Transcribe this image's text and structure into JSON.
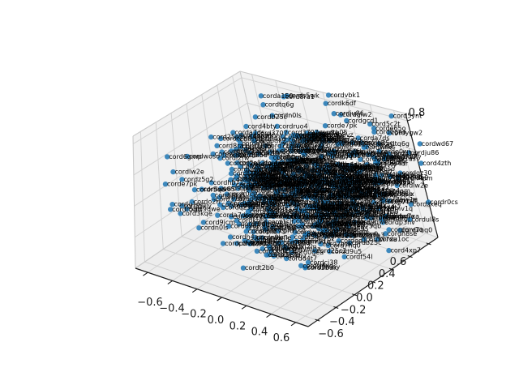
{
  "figure": {
    "background": "#ffffff"
  },
  "chart_data": {
    "type": "scatter",
    "projection_type": "3d",
    "title": "",
    "xlabel": "",
    "ylabel": "",
    "zlabel": "",
    "legend": null,
    "grid": true,
    "x_range": [
      -0.7,
      0.7
    ],
    "y_range": [
      -0.7,
      0.7
    ],
    "z_range": [
      0.0,
      0.85
    ],
    "x_ticks": [
      -0.6,
      -0.4,
      -0.2,
      0.0,
      0.2,
      0.4,
      0.6
    ],
    "x_tick_labels": [
      "-0.6",
      "-0.4",
      "-0.2",
      "0.0",
      "0.2",
      "0.4",
      "0.6"
    ],
    "y_ticks": [
      -0.6,
      -0.4,
      -0.2,
      0.0,
      0.2,
      0.4,
      0.6
    ],
    "y_tick_labels": [
      "-0.6",
      "-0.4",
      "-0.2",
      "0.0",
      "0.2",
      "0.4",
      "0.6"
    ],
    "z_ticks": [
      0.0,
      0.2,
      0.4,
      0.6,
      0.8
    ],
    "z_tick_labels_visible": [
      "0.8"
    ],
    "tick_label_font_size_px": 13,
    "colors": {
      "marker": "#1f77b4",
      "marker_opacity": 0.85,
      "point_label": "#000000",
      "pane": "#f1f1f1",
      "floor_pane": "#ededed",
      "grid_line": "#d2d2d2",
      "pane_edge": "#c9c9c9",
      "spine": "#1a1a1a",
      "tick_label": "#1a1a1a"
    },
    "marker_radius_px": 3.2,
    "point_label_font_size_px": 8,
    "cluster": {
      "n_points": 600,
      "seed": 11,
      "center": [
        0.15,
        0.1,
        0.45
      ],
      "sigma": [
        0.33,
        0.31,
        0.16
      ],
      "clamp_x": [
        -0.66,
        0.68
      ],
      "clamp_y": [
        -0.66,
        0.68
      ],
      "clamp_z": [
        0.02,
        0.82
      ]
    },
    "point_labels": [
      "cordti4xd",
      "cord75qb",
      "cordgiw2",
      "cordwa65",
      "cord9lb6",
      "cordgcd1",
      "cordy74v",
      "cordwoso",
      "corda159",
      "cordb25c",
      "corde12f",
      "cordf54l",
      "cord3707",
      "cordq7a3",
      "cordwfle",
      "cordzkeq",
      "cordr5qb",
      "cordhb71",
      "corde65o",
      "cordod17",
      "cordywlu",
      "cord25c2",
      "cord2buk",
      "cordt2b0",
      "cordkte9",
      "cord8ra1",
      "cordz5g2",
      "cord0pat",
      "cordd4t7",
      "cord5c2t",
      "cord1wd3",
      "cordul8s",
      "cordxj2m",
      "cord7hq0",
      "cordp3nv",
      "cordk6df",
      "cordm2zr",
      "cord9qwe",
      "cord4bty",
      "cordcv81",
      "cordn0ls",
      "cord6gmp",
      "cordw7xa",
      "cordrj45",
      "cord0dk2",
      "cordh8se",
      "cord3vfy",
      "cordu1oc",
      "cordb6n9",
      "corde0wi",
      "cord5tgl",
      "cordympa",
      "cord2c7d",
      "cordqz30",
      "cord8fkv",
      "cordox6j",
      "cords4hr",
      "cord71ab",
      "cordd9u5",
      "cordlw2e",
      "cord0mny",
      "cordtq6g",
      "cordcj38",
      "cord4xp7",
      "cordvbk1",
      "cordze95",
      "corda7ds",
      "cordi2fw",
      "cord60hl",
      "cordruo4",
      "cord9jcm",
      "cord5ynt",
      "cordgx0b",
      "cord3kqe",
      "cordp8vz",
      "cord1slf",
      "cordwd67",
      "cordh4am",
      "cordo2ri",
      "cordtb05",
      "cord7neu",
      "cordkf93",
      "cordc6jx",
      "cordmv1q",
      "cord58do",
      "cordygw2",
      "cord4zth",
      "corde7pk",
      "cordr0cs",
      "cordju86",
      "cord1bfm",
      "cordxn3v",
      "cordq9ly",
      "cord0gea",
      "cords5wk",
      "corddh72"
    ]
  }
}
